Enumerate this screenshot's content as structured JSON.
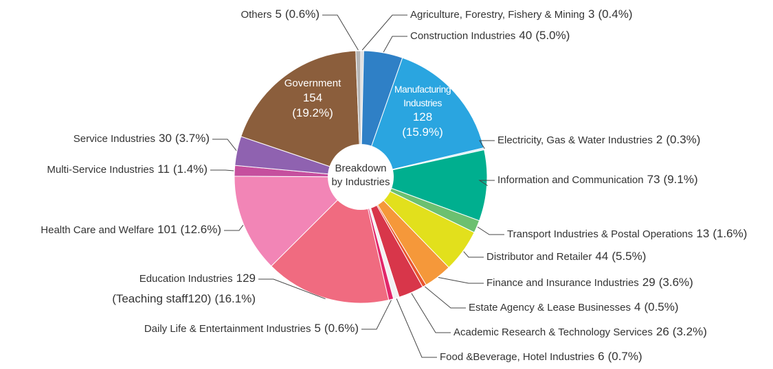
{
  "chart_data": {
    "type": "pie",
    "donut": true,
    "center_label": "Breakdown by Industries",
    "categories": [
      "Agriculture, Forestry, Fishery & Mining",
      "Construction Industries",
      "Manufacturing Industries",
      "Electricity, Gas & Water Industries",
      "Information and Communication",
      "Transport Industries & Postal Operations",
      "Distributor and Retailer",
      "Finance and Insurance Industries",
      "Estate Agency & Lease Businesses",
      "Academic Research & Technology Services",
      "Food &Beverage, Hotel Industries",
      "Daily Life & Entertainment Industries",
      "Education Industries",
      "Health Care and Welfare",
      "Multi-Service Industries",
      "Service Industries",
      "Government",
      "Others"
    ],
    "values": [
      3,
      40,
      128,
      2,
      73,
      13,
      44,
      29,
      4,
      26,
      6,
      5,
      129,
      101,
      11,
      30,
      154,
      5
    ],
    "percent_labels": [
      "(0.4%)",
      "(5.0%)",
      "(15.9%)",
      "(0.3%)",
      "(9.1%)",
      "(1.6%)",
      "(5.5%)",
      "(3.6%)",
      "(0.5%)",
      "(3.2%)",
      "(0.7%)",
      "(0.6%)",
      "(16.1%)",
      "(12.6%)",
      "(1.4%)",
      "(3.7%)",
      "(19.2%)",
      "(0.6%)"
    ],
    "details": [
      null,
      null,
      null,
      null,
      null,
      null,
      null,
      null,
      null,
      null,
      null,
      null,
      "(Teaching staff120)",
      null,
      null,
      null,
      null,
      null
    ],
    "colors": [
      "#dcdcdc",
      "#2f80c6",
      "#2aa5e0",
      "#d8eef9",
      "#00af8f",
      "#6cc070",
      "#e2e01c",
      "#f5983a",
      "#e9552f",
      "#d8364a",
      "#f2f2f2",
      "#e2276a",
      "#f06b80",
      "#f285b6",
      "#c64f9e",
      "#8f62b0",
      "#8b5e3c",
      "#b5b5b5"
    ]
  }
}
